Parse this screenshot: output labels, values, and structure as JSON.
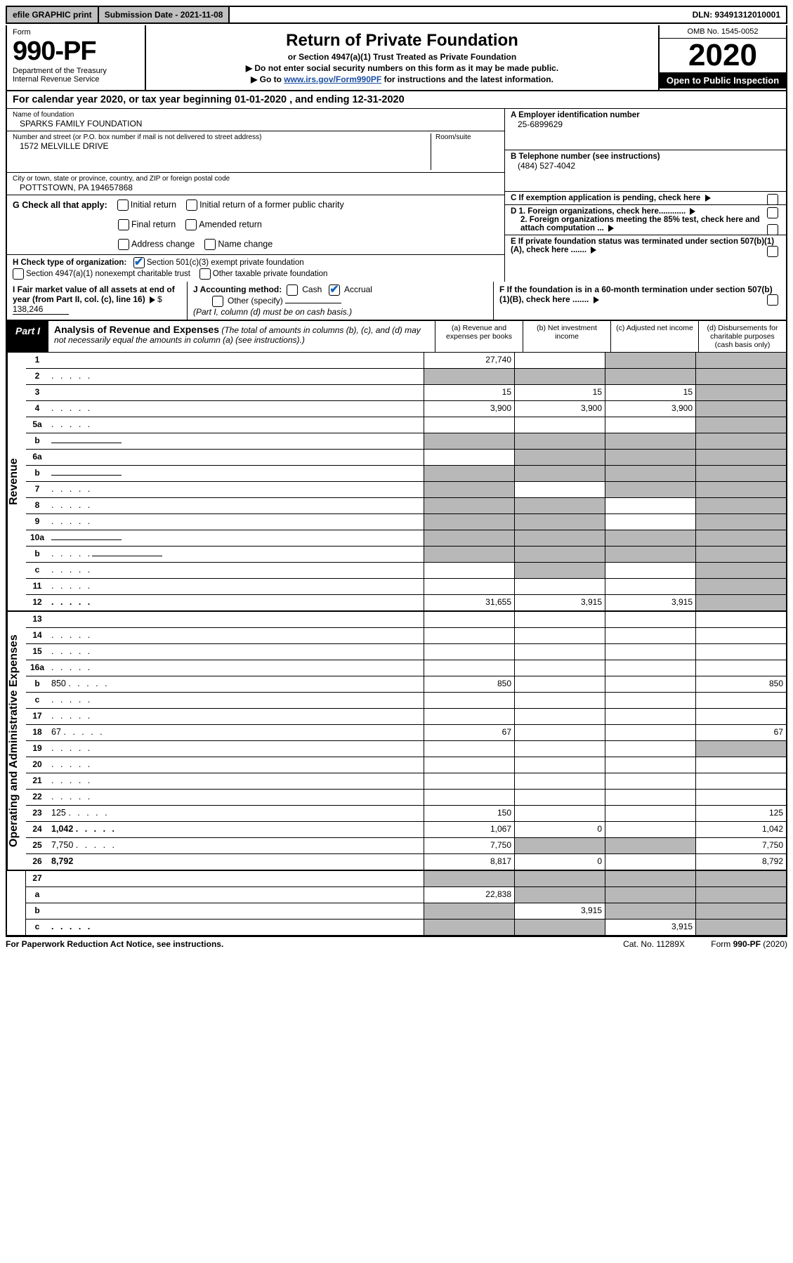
{
  "top": {
    "efile": "efile GRAPHIC print",
    "submission": "Submission Date - 2021-11-08",
    "dln": "DLN: 93491312010001"
  },
  "header": {
    "form_label": "Form",
    "form_number": "990-PF",
    "dept1": "Department of the Treasury",
    "dept2": "Internal Revenue Service",
    "title": "Return of Private Foundation",
    "subtitle": "or Section 4947(a)(1) Trust Treated as Private Foundation",
    "note1": "▶ Do not enter social security numbers on this form as it may be made public.",
    "note2_pre": "▶ Go to ",
    "note2_link": "www.irs.gov/Form990PF",
    "note2_post": " for instructions and the latest information.",
    "omb": "OMB No. 1545-0052",
    "year": "2020",
    "open": "Open to Public Inspection"
  },
  "calendar": "For calendar year 2020, or tax year beginning 01-01-2020            , and ending 12-31-2020",
  "foundation": {
    "name_label": "Name of foundation",
    "name": "SPARKS FAMILY FOUNDATION",
    "addr_label": "Number and street (or P.O. box number if mail is not delivered to street address)",
    "room_label": "Room/suite",
    "addr": "1572 MELVILLE DRIVE",
    "city_label": "City or town, state or province, country, and ZIP or foreign postal code",
    "city": "POTTSTOWN, PA  194657868"
  },
  "right_info": {
    "a_label": "A Employer identification number",
    "a_val": "25-6899629",
    "b_label": "B Telephone number (see instructions)",
    "b_val": "(484) 527-4042",
    "c_label": "C If exemption application is pending, check here",
    "d1": "D 1. Foreign organizations, check here............",
    "d2": "2. Foreign organizations meeting the 85% test, check here and attach computation ...",
    "e": "E  If private foundation status was terminated under section 507(b)(1)(A), check here .......",
    "f": "F  If the foundation is in a 60-month termination under section 507(b)(1)(B), check here ......."
  },
  "checks": {
    "g_label": "G Check all that apply:",
    "g1": "Initial return",
    "g2": "Initial return of a former public charity",
    "g3": "Final return",
    "g4": "Amended return",
    "g5": "Address change",
    "g6": "Name change",
    "h_label": "H Check type of organization:",
    "h1": "Section 501(c)(3) exempt private foundation",
    "h2": "Section 4947(a)(1) nonexempt charitable trust",
    "h3": "Other taxable private foundation",
    "i_label": "I Fair market value of all assets at end of year (from Part II, col. (c), line 16)",
    "i_val": "138,246",
    "j_label": "J Accounting method:",
    "j1": "Cash",
    "j2": "Accrual",
    "j3": "Other (specify)",
    "j_note": "(Part I, column (d) must be on cash basis.)"
  },
  "part1": {
    "label": "Part I",
    "title": "Analysis of Revenue and Expenses",
    "note": " (The total of amounts in columns (b), (c), and (d) may not necessarily equal the amounts in column (a) (see instructions).)",
    "col_a": "(a)   Revenue and expenses per books",
    "col_b": "(b)   Net investment income",
    "col_c": "(c)   Adjusted net income",
    "col_d": "(d)  Disbursements for charitable purposes (cash basis only)"
  },
  "revenue_label": "Revenue",
  "expense_label": "Operating and Administrative Expenses",
  "rows": [
    {
      "n": "1",
      "d": "",
      "a": "27,740",
      "b": "",
      "c": "",
      "shade_b": false,
      "shade_c": true,
      "shade_d": true
    },
    {
      "n": "2",
      "d": "",
      "dots": true,
      "a": "",
      "b": "",
      "c": "",
      "shade_a": true,
      "shade_b": true,
      "shade_c": true,
      "shade_d": true
    },
    {
      "n": "3",
      "d": "",
      "a": "15",
      "b": "15",
      "c": "15",
      "shade_d": true
    },
    {
      "n": "4",
      "d": "",
      "dots": true,
      "a": "3,900",
      "b": "3,900",
      "c": "3,900",
      "shade_d": true
    },
    {
      "n": "5a",
      "d": "",
      "dots": true,
      "a": "",
      "b": "",
      "c": "",
      "shade_d": true
    },
    {
      "n": "b",
      "d": "",
      "inline": true,
      "a": "",
      "b": "",
      "c": "",
      "shade_a": true,
      "shade_b": true,
      "shade_c": true,
      "shade_d": true
    },
    {
      "n": "6a",
      "d": "",
      "a": "",
      "b": "",
      "c": "",
      "shade_b": true,
      "shade_c": true,
      "shade_d": true
    },
    {
      "n": "b",
      "d": "",
      "inline": true,
      "a": "",
      "b": "",
      "c": "",
      "shade_a": true,
      "shade_b": true,
      "shade_c": true,
      "shade_d": true
    },
    {
      "n": "7",
      "d": "",
      "dots": true,
      "a": "",
      "b": "",
      "c": "",
      "shade_a": true,
      "shade_c": true,
      "shade_d": true
    },
    {
      "n": "8",
      "d": "",
      "dots": true,
      "a": "",
      "b": "",
      "c": "",
      "shade_a": true,
      "shade_b": true,
      "shade_d": true
    },
    {
      "n": "9",
      "d": "",
      "dots": true,
      "a": "",
      "b": "",
      "c": "",
      "shade_a": true,
      "shade_b": true,
      "shade_d": true
    },
    {
      "n": "10a",
      "d": "",
      "inline": true,
      "a": "",
      "b": "",
      "c": "",
      "shade_a": true,
      "shade_b": true,
      "shade_c": true,
      "shade_d": true
    },
    {
      "n": "b",
      "d": "",
      "dots": true,
      "inline": true,
      "a": "",
      "b": "",
      "c": "",
      "shade_a": true,
      "shade_b": true,
      "shade_c": true,
      "shade_d": true
    },
    {
      "n": "c",
      "d": "",
      "dots": true,
      "a": "",
      "b": "",
      "c": "",
      "shade_b": true,
      "shade_d": true
    },
    {
      "n": "11",
      "d": "",
      "dots": true,
      "a": "",
      "b": "",
      "c": "",
      "shade_d": true
    },
    {
      "n": "12",
      "d": "",
      "dots": true,
      "bold": true,
      "a": "31,655",
      "b": "3,915",
      "c": "3,915",
      "shade_d": true
    }
  ],
  "exp_rows": [
    {
      "n": "13",
      "d": "",
      "a": "",
      "b": "",
      "c": ""
    },
    {
      "n": "14",
      "d": "",
      "dots": true,
      "a": "",
      "b": "",
      "c": ""
    },
    {
      "n": "15",
      "d": "",
      "dots": true,
      "a": "",
      "b": "",
      "c": ""
    },
    {
      "n": "16a",
      "d": "",
      "dots": true,
      "a": "",
      "b": "",
      "c": ""
    },
    {
      "n": "b",
      "d": "850",
      "dots": true,
      "a": "850",
      "b": "",
      "c": ""
    },
    {
      "n": "c",
      "d": "",
      "dots": true,
      "a": "",
      "b": "",
      "c": ""
    },
    {
      "n": "17",
      "d": "",
      "dots": true,
      "a": "",
      "b": "",
      "c": ""
    },
    {
      "n": "18",
      "d": "67",
      "dots": true,
      "a": "67",
      "b": "",
      "c": ""
    },
    {
      "n": "19",
      "d": "",
      "dots": true,
      "a": "",
      "b": "",
      "c": "",
      "shade_d": true
    },
    {
      "n": "20",
      "d": "",
      "dots": true,
      "a": "",
      "b": "",
      "c": ""
    },
    {
      "n": "21",
      "d": "",
      "dots": true,
      "a": "",
      "b": "",
      "c": ""
    },
    {
      "n": "22",
      "d": "",
      "dots": true,
      "a": "",
      "b": "",
      "c": ""
    },
    {
      "n": "23",
      "d": "125",
      "dots": true,
      "a": "150",
      "b": "",
      "c": ""
    },
    {
      "n": "24",
      "d": "1,042",
      "dots": true,
      "bold": true,
      "a": "1,067",
      "b": "0",
      "c": ""
    },
    {
      "n": "25",
      "d": "7,750",
      "dots": true,
      "a": "7,750",
      "b": "",
      "c": "",
      "shade_b": true,
      "shade_c": true
    },
    {
      "n": "26",
      "d": "8,792",
      "bold": true,
      "a": "8,817",
      "b": "0",
      "c": ""
    }
  ],
  "final_rows": [
    {
      "n": "27",
      "d": "",
      "a": "",
      "b": "",
      "c": "",
      "shade_a": true,
      "shade_b": true,
      "shade_c": true,
      "shade_d": true
    },
    {
      "n": "a",
      "d": "",
      "bold": true,
      "a": "22,838",
      "b": "",
      "c": "",
      "shade_b": true,
      "shade_c": true,
      "shade_d": true
    },
    {
      "n": "b",
      "d": "",
      "bold": true,
      "a": "",
      "b": "3,915",
      "c": "",
      "shade_a": true,
      "shade_c": true,
      "shade_d": true
    },
    {
      "n": "c",
      "d": "",
      "dots": true,
      "bold": true,
      "a": "",
      "b": "",
      "c": "3,915",
      "shade_a": true,
      "shade_b": true,
      "shade_d": true
    }
  ],
  "footer": {
    "left": "For Paperwork Reduction Act Notice, see instructions.",
    "mid": "Cat. No. 11289X",
    "right": "Form 990-PF (2020)"
  }
}
